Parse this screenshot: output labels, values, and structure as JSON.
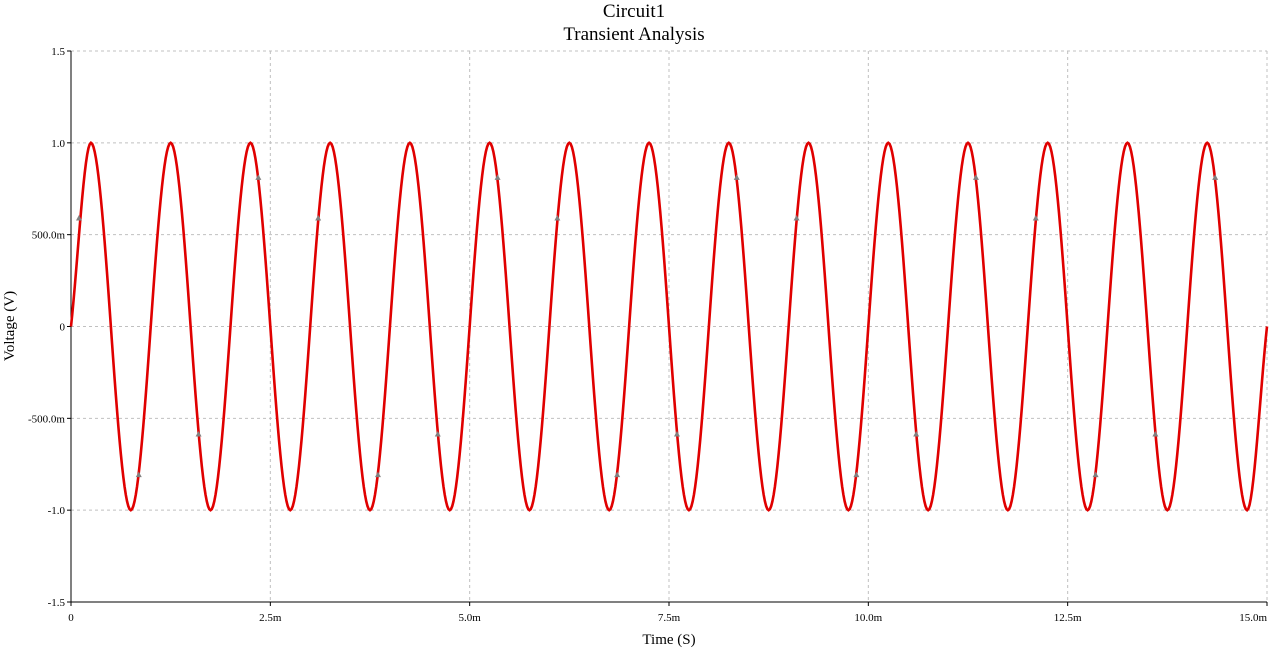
{
  "chart_data": {
    "type": "line",
    "title": "Circuit1",
    "subtitle": "Transient Analysis",
    "xlabel": "Time (S)",
    "ylabel": "Voltage (V)",
    "xlim": [
      0,
      0.015
    ],
    "ylim": [
      -1.5,
      1.5
    ],
    "grid": true,
    "x_ticks": [
      0,
      0.0025,
      0.005,
      0.0075,
      0.01,
      0.0125,
      0.015
    ],
    "x_tick_labels": [
      "0",
      "2.5m",
      "5.0m",
      "7.5m",
      "10.0m",
      "12.5m",
      "15.0m"
    ],
    "y_ticks": [
      -1.5,
      -1.0,
      -0.5,
      0,
      0.5,
      1.0,
      1.5
    ],
    "y_tick_labels": [
      "-1.5",
      "-1.0",
      "-500.0m",
      "0",
      "500.0m",
      "1.0",
      "1.5"
    ],
    "series": [
      {
        "color": "#e00000",
        "marker": "triangle",
        "marker_color": "#808080",
        "x": [
          0,
          0.00025,
          0.0005,
          0.00075,
          0.001,
          0.00125,
          0.0015,
          0.00175,
          0.002,
          0.00225,
          0.0025,
          0.00275,
          0.003,
          0.00325,
          0.0035,
          0.00375,
          0.004,
          0.00425,
          0.0045,
          0.00475,
          0.005,
          0.00525,
          0.0055,
          0.00575,
          0.006,
          0.00625,
          0.0065,
          0.00675,
          0.007,
          0.00725,
          0.0075,
          0.00775,
          0.008,
          0.00825,
          0.0085,
          0.00875,
          0.009,
          0.00925,
          0.0095,
          0.00975,
          0.01,
          0.01025,
          0.0105,
          0.01075,
          0.011,
          0.01125,
          0.0115,
          0.01175,
          0.012,
          0.01225,
          0.0125,
          0.01275,
          0.013,
          0.01325,
          0.0135,
          0.01375,
          0.014,
          0.01425,
          0.0145,
          0.01475,
          0.015
        ],
        "y": [
          0,
          1.0,
          0,
          -1.0,
          0,
          1.0,
          0,
          -1.0,
          0,
          1.0,
          0,
          -1.0,
          0,
          1.0,
          0,
          -1.0,
          0,
          1.0,
          0,
          -1.0,
          0,
          1.0,
          0,
          -1.0,
          0,
          1.0,
          0,
          -1.0,
          0,
          1.0,
          0,
          -1.0,
          0,
          1.0,
          0,
          -1.0,
          0,
          1.0,
          0,
          -1.0,
          0,
          1.0,
          0,
          -1.0,
          0,
          1.0,
          0,
          -1.0,
          0,
          1.0,
          0,
          -1.0,
          0,
          1.0,
          0,
          -1.0,
          0,
          1.0,
          0,
          -1.0,
          0
        ]
      }
    ]
  }
}
